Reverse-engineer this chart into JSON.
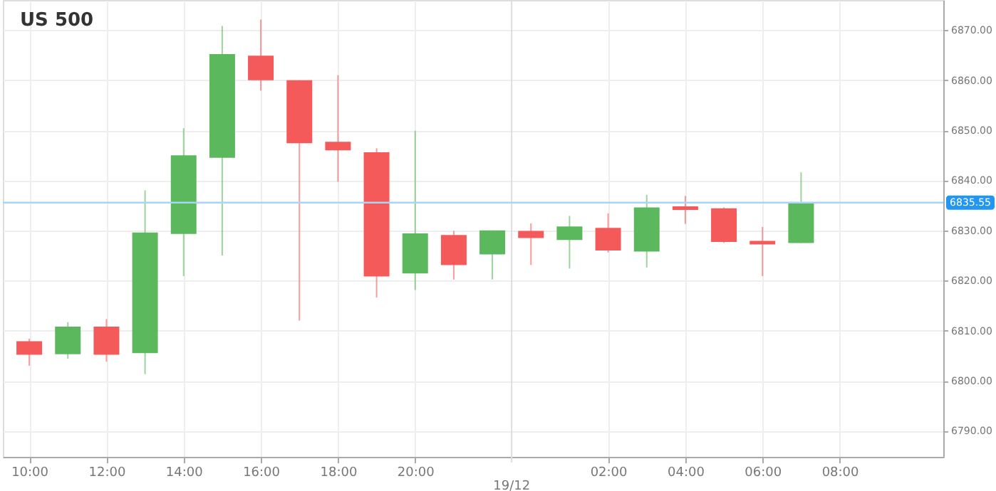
{
  "chart_data": {
    "type": "candlestick",
    "title": "US 500",
    "categories": [
      "10:00",
      null,
      "12:00",
      null,
      "14:00",
      null,
      "16:00",
      null,
      "18:00",
      null,
      "20:00",
      null,
      null,
      null,
      null,
      "02:00",
      null,
      "04:00",
      null,
      "06:00",
      null,
      "08:00",
      null,
      null
    ],
    "ohlc": [
      [
        6807.9,
        6808.4,
        6803.0,
        6805.2
      ],
      [
        6805.3,
        6811.7,
        6804.4,
        6810.8
      ],
      [
        6810.8,
        6812.3,
        6803.8,
        6805.2
      ],
      [
        6805.5,
        6838.0,
        6801.3,
        6829.6
      ],
      [
        6829.3,
        6850.4,
        6820.9,
        6845.0
      ],
      [
        6844.5,
        6870.8,
        6825.0,
        6865.2
      ],
      [
        6864.9,
        6872.1,
        6857.9,
        6860.0
      ],
      [
        6860.0,
        6860.0,
        6812.0,
        6847.4
      ],
      [
        6847.7,
        6861.0,
        6839.7,
        6846.0
      ],
      [
        6845.6,
        6846.4,
        6816.6,
        6820.8
      ],
      [
        6821.4,
        6849.9,
        6818.1,
        6829.4
      ],
      [
        6829.1,
        6829.9,
        6820.2,
        6823.1
      ],
      [
        6825.2,
        6830.0,
        6820.2,
        6830.0
      ],
      [
        6829.9,
        6831.4,
        6823.1,
        6828.5
      ],
      [
        6828.1,
        6832.9,
        6822.4,
        6830.8
      ],
      [
        6830.5,
        6833.4,
        6825.6,
        6826.0
      ],
      [
        6825.8,
        6837.1,
        6822.6,
        6834.6
      ],
      [
        6834.8,
        6836.9,
        6831.3,
        6834.1
      ],
      [
        6834.4,
        6834.6,
        6827.5,
        6827.7
      ],
      [
        6827.9,
        6830.7,
        6820.9,
        6827.2
      ],
      [
        6827.5,
        6841.6,
        6827.5,
        6835.5
      ],
      null,
      null,
      null
    ],
    "colors": [
      "#f55a5a",
      "#5cb85c",
      "#f55a5a",
      "#5cb85c",
      "#5cb85c",
      "#5cb85c",
      "#f55a5a",
      "#f55a5a",
      "#f55a5a",
      "#f55a5a",
      "#5cb85c",
      "#f55a5a",
      "#5cb85c",
      "#f55a5a",
      "#5cb85c",
      "#f55a5a",
      "#5cb85c",
      "#f55a5a",
      "#f55a5a",
      "#f55a5a",
      "#5cb85c",
      null,
      null,
      null
    ],
    "ylim": [
      6784.8,
      6876
    ],
    "yticks": [
      {
        "value": 6790,
        "label": "6790.00"
      },
      {
        "value": 6800,
        "label": "6800.00"
      },
      {
        "value": 6810,
        "label": "6810.00"
      },
      {
        "value": 6820,
        "label": "6820.00"
      },
      {
        "value": 6830,
        "label": "6830.00"
      },
      {
        "value": 6840,
        "label": "6840.00"
      },
      {
        "value": 6850,
        "label": "6850.00"
      },
      {
        "value": 6860,
        "label": "6860.00"
      },
      {
        "value": 6870,
        "label": "6870.00"
      }
    ],
    "ref_lines": [
      {
        "axis": "y",
        "value": 6835.55,
        "label": "6835.55",
        "color": "#a8d4f5"
      }
    ],
    "annotations": [
      "19/12"
    ],
    "grid": true
  }
}
